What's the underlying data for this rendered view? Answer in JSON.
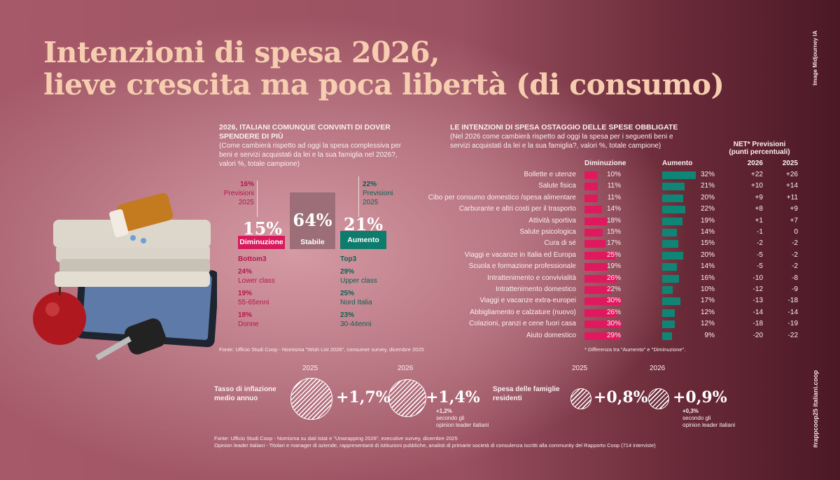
{
  "title": {
    "line1": "Intenzioni di spesa 2026,",
    "line2": "lieve crescita ma poca libertà (di consumo)"
  },
  "side_credit": "Image Midjourney IA",
  "side_tag": "#rappcoop25 italiani.coop",
  "left": {
    "heading": "2026, ITALIANI COMUNQUE CONVINTI DI DOVER SPENDERE DI PIÙ",
    "question": "(Come cambierà rispetto ad oggi la spesa complessiva per beni e servizi acquistati da lei e la sua famiglia nel 2026?, valori %, totale campione)",
    "dim": {
      "prev_value": "16%",
      "prev_label1": "Previsioni",
      "prev_label2": "2025",
      "value": "15%",
      "label": "Diminuzione",
      "group": "Bottom3",
      "items": [
        {
          "v": "24%",
          "l": "Lower class"
        },
        {
          "v": "19%",
          "l": "55-65enni"
        },
        {
          "v": "18%",
          "l": "Donne"
        }
      ]
    },
    "stable": {
      "value": "64%",
      "label": "Stabile"
    },
    "aum": {
      "prev_value": "22%",
      "prev_label1": "Previsioni",
      "prev_label2": "2025",
      "value": "21%",
      "label": "Aumento",
      "group": "Top3",
      "items": [
        {
          "v": "29%",
          "l": "Upper class"
        },
        {
          "v": "25%",
          "l": "Nord Italia"
        },
        {
          "v": "23%",
          "l": "30-44enni"
        }
      ]
    },
    "source": "Fonte: Ufficio Studi Coop - Nomisma \"Wish List 2026\", consumer survey, dicembre 2025"
  },
  "chart_data": {
    "type": "bar",
    "title": "LE INTENZIONI DI SPESA OSTAGGIO DELLE SPESE OBBLIGATE",
    "subtitle": "(Nel 2026 come cambierà rispetto ad oggi la spesa per i seguenti beni e servizi acquistati da lei e la sua famiglia?, valori %, totale campione)",
    "col_dim": "Diminuzione",
    "col_aum": "Aumento",
    "net_header1": "NET* Previsioni",
    "net_header2": "(punti percentuali)",
    "net_col1": "2026",
    "net_col2": "2025",
    "note": "* Differenza tra \"Aumento\" e \"Diminuzione\".",
    "colors": {
      "dim": "#e0195f",
      "aum": "#0f8575"
    },
    "categories": [
      "Bollette e utenze",
      "Salute fisica",
      "Cibo per consumo domestico /spesa alimentare",
      "Carburante e altri costi per il trasporto",
      "Attività sportiva",
      "Salute psicologica",
      "Cura di sé",
      "Viaggi e vacanze in Italia ed Europa",
      "Scuola e formazione professionale",
      "Intrattenimento e convivialità",
      "Intrattenimento domestico",
      "Viaggi e vacanze extra-europei",
      "Abbigliamento e calzature (nuovo)",
      "Colazioni, pranzi e cene fuori casa",
      "Aiuto domestico"
    ],
    "series": [
      {
        "name": "Diminuzione",
        "values": [
          10,
          11,
          11,
          14,
          18,
          15,
          17,
          25,
          19,
          26,
          22,
          30,
          26,
          30,
          29
        ]
      },
      {
        "name": "Aumento",
        "values": [
          32,
          21,
          20,
          22,
          19,
          14,
          15,
          20,
          14,
          16,
          10,
          17,
          12,
          12,
          9
        ]
      }
    ],
    "net_2026": [
      "+22",
      "+10",
      "+9",
      "+8",
      "+1",
      "-1",
      "-2",
      "-5",
      "-5",
      "-10",
      "-12",
      "-13",
      "-14",
      "-18",
      "-20"
    ],
    "net_2025": [
      "+26",
      "+14",
      "+11",
      "+9",
      "+7",
      "0",
      "-2",
      "-2",
      "-2",
      "-8",
      "-9",
      "-18",
      "-14",
      "-19",
      "-22"
    ]
  },
  "bottom": {
    "infl_label": "Tasso di inflazione medio annuo",
    "infl_y1": "2025",
    "infl_v1": "+1,7%",
    "infl_y2": "2026",
    "infl_v2": "+1,4%",
    "infl_note1": "+1,2%",
    "infl_note2": "secondo gli",
    "infl_note3": "opinion leader italiani",
    "spesa_label": "Spesa delle famiglie residenti",
    "spesa_y1": "2025",
    "spesa_v1": "+0,8%",
    "spesa_y2": "2026",
    "spesa_v2": "+0,9%",
    "spesa_note1": "+0,3%",
    "spesa_note2": "secondo gli",
    "spesa_note3": "opinion leader italiani",
    "source1": "Fonte: Ufficio Studi Coop - Nomisma su dati Istat e \"Unwrapping 2026\", executive survey, dicembre 2025",
    "source2": "Opinion leader italiani -  Titolari e manager di aziende, rappresentanti di istituzioni pubbliche, analisti di primarie società di consulenza iscritti alla community del Rapporto Coop (714 interviste)"
  }
}
